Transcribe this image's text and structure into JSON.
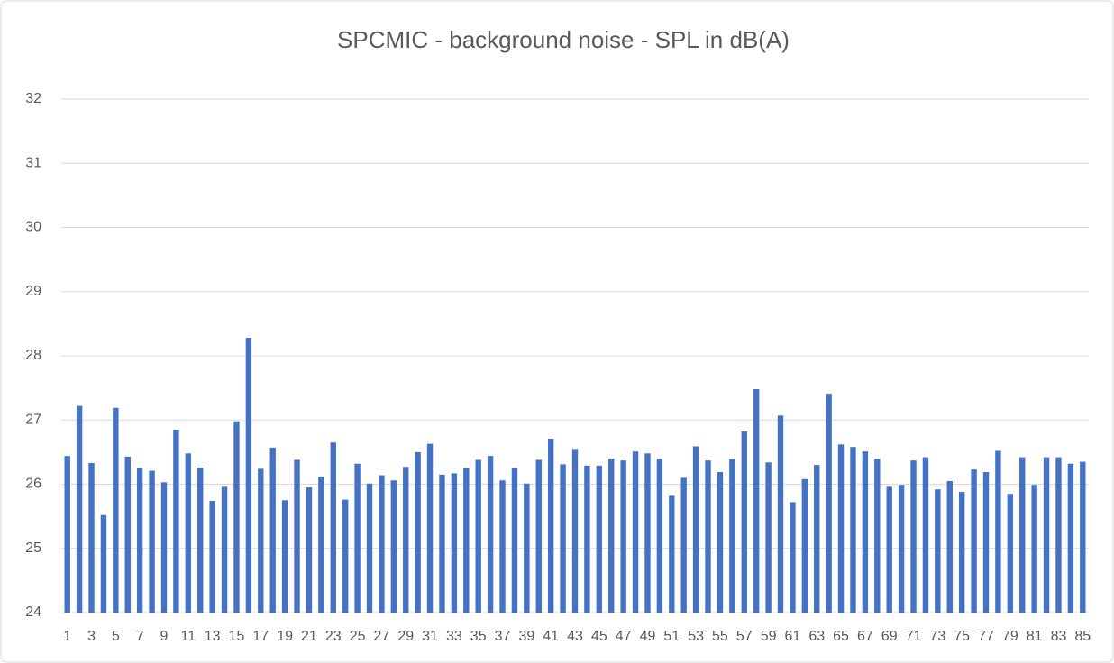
{
  "chart_data": {
    "type": "bar",
    "title": "SPCMIC - background noise - SPL in dB(A)",
    "categories": [
      "1",
      null,
      "3",
      null,
      "5",
      null,
      "7",
      null,
      "9",
      null,
      "11",
      null,
      "13",
      null,
      "15",
      null,
      "17",
      null,
      "19",
      null,
      "21",
      null,
      "23",
      null,
      "25",
      null,
      "27",
      null,
      "29",
      null,
      "31",
      null,
      "33",
      null,
      "35",
      null,
      "37",
      null,
      "39",
      null,
      "41",
      null,
      "43",
      null,
      "45",
      null,
      "47",
      null,
      "49",
      null,
      "51",
      null,
      "53",
      null,
      "55",
      null,
      "57",
      null,
      "59",
      null,
      "61",
      null,
      "63",
      null,
      "65",
      null,
      "67",
      null,
      "69",
      null,
      "71",
      null,
      "73",
      null,
      "75",
      null,
      "77",
      null,
      "79",
      null,
      "81",
      null,
      "83",
      null,
      "85"
    ],
    "values": [
      26.44,
      27.22,
      26.33,
      25.52,
      27.19,
      26.43,
      26.25,
      26.21,
      26.03,
      26.85,
      26.48,
      26.26,
      25.74,
      25.96,
      26.98,
      28.28,
      26.24,
      26.57,
      25.75,
      26.38,
      25.95,
      26.12,
      26.65,
      25.76,
      26.32,
      26.01,
      26.14,
      26.06,
      26.27,
      26.5,
      26.63,
      26.15,
      26.17,
      26.25,
      26.38,
      26.44,
      26.06,
      26.25,
      26.01,
      26.38,
      26.71,
      26.31,
      26.55,
      26.29,
      26.29,
      26.4,
      26.37,
      26.51,
      26.48,
      26.4,
      25.82,
      26.1,
      26.59,
      26.37,
      26.19,
      26.39,
      26.82,
      27.48,
      26.34,
      27.07,
      25.72,
      26.08,
      26.3,
      27.41,
      26.62,
      26.58,
      26.51,
      26.4,
      25.96,
      25.99,
      26.37,
      26.42,
      25.92,
      26.05,
      25.88,
      26.23,
      26.19,
      26.52,
      25.85,
      26.42,
      25.99,
      26.42,
      26.42,
      26.32,
      26.35
    ],
    "color": "#4472c4",
    "ylim": [
      24,
      32
    ],
    "yticks": [
      24,
      25,
      26,
      27,
      28,
      29,
      30,
      31,
      32
    ],
    "grid": true
  }
}
